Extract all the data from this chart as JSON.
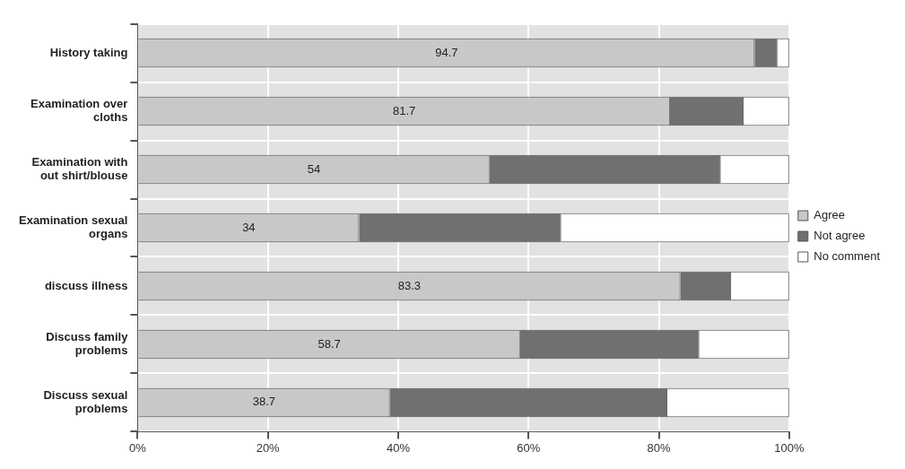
{
  "chart_data": {
    "type": "bar",
    "orientation": "horizontal",
    "stacked": true,
    "categories": [
      "History taking",
      "Examination over cloths",
      "Examination with out shirt/blouse",
      "Examination sexual organs",
      "discuss illness",
      "Discuss family problems",
      "Discuss sexual problems"
    ],
    "series": [
      {
        "name": "Agree",
        "color": "#c8c8c8",
        "values": [
          94.7,
          81.7,
          54,
          34,
          83.3,
          58.7,
          38.7
        ],
        "value_labels": [
          "94.7",
          "81.7",
          "54",
          "34",
          "83.3",
          "58.7",
          "38.7"
        ]
      },
      {
        "name": "Not agree",
        "color": "#707070",
        "values": [
          3.5,
          11.3,
          35.5,
          31,
          7.8,
          27.5,
          42.6
        ]
      },
      {
        "name": "No comment",
        "color": "#ffffff",
        "values": [
          1.8,
          7,
          10.5,
          35,
          8.9,
          13.8,
          18.7
        ]
      }
    ],
    "xlim": [
      0,
      100
    ],
    "xticks": [
      {
        "value": 0,
        "label": "0%"
      },
      {
        "value": 20,
        "label": "20%"
      },
      {
        "value": 40,
        "label": "40%"
      },
      {
        "value": 60,
        "label": "60%"
      },
      {
        "value": 80,
        "label": "80%"
      },
      {
        "value": 100,
        "label": "100%"
      }
    ],
    "grid": "x",
    "legend": "right"
  }
}
